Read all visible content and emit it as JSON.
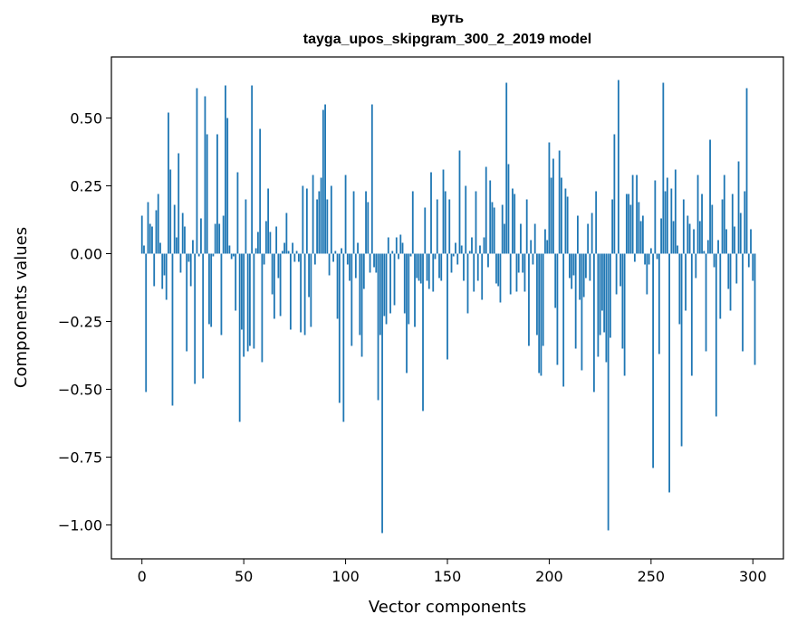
{
  "chart_data": {
    "type": "bar",
    "title": "вуть",
    "subtitle": "tayga_upos_skipgram_300_2_2019 model",
    "xlabel": "Vector components",
    "ylabel": "Components values",
    "xlim": [
      -15,
      315
    ],
    "ylim": [
      -1.125,
      0.725
    ],
    "xticks": [
      0,
      50,
      100,
      150,
      200,
      250,
      300
    ],
    "xtick_labels": [
      "0",
      "50",
      "100",
      "150",
      "200",
      "250",
      "300"
    ],
    "yticks": [
      0.5,
      0.25,
      0,
      -0.25,
      -0.5,
      -0.75,
      -1.0
    ],
    "ytick_labels": [
      "0.50",
      "0.25",
      "0.00",
      "−0.25",
      "−0.50",
      "−0.75",
      "−1.00"
    ],
    "grid": false,
    "bar_color": "#1f77b4",
    "x": "0..299",
    "values": [
      0.14,
      0.03,
      -0.51,
      0.19,
      0.11,
      0.1,
      -0.12,
      0.16,
      0.22,
      0.04,
      -0.13,
      -0.08,
      -0.17,
      0.52,
      0.31,
      -0.56,
      0.18,
      0.06,
      0.37,
      -0.07,
      0.15,
      0.1,
      -0.36,
      -0.03,
      -0.12,
      0.05,
      -0.48,
      0.61,
      -0.01,
      0.13,
      -0.46,
      0.58,
      0.44,
      -0.26,
      -0.27,
      -0.01,
      0.11,
      0.44,
      0.11,
      -0.3,
      0.14,
      0.62,
      0.5,
      0.03,
      -0.02,
      -0.01,
      -0.21,
      0.3,
      -0.62,
      -0.28,
      -0.38,
      0.2,
      -0.36,
      -0.34,
      0.62,
      -0.35,
      0.02,
      0.08,
      0.46,
      -0.4,
      -0.04,
      0.12,
      0.24,
      0.08,
      -0.15,
      -0.24,
      0.1,
      -0.09,
      -0.23,
      0.01,
      0.04,
      0.15,
      0.01,
      -0.28,
      0.04,
      -0.03,
      0.01,
      -0.03,
      -0.29,
      0.25,
      -0.3,
      0.24,
      -0.16,
      -0.27,
      0.29,
      -0.04,
      0.2,
      0.23,
      0.28,
      0.53,
      0.55,
      0.2,
      -0.08,
      0.25,
      -0.03,
      0.01,
      -0.24,
      -0.55,
      0.02,
      -0.62,
      0.29,
      -0.04,
      -0.1,
      -0.34,
      0.23,
      -0.09,
      0.04,
      -0.3,
      -0.38,
      -0.13,
      0.23,
      0.19,
      -0.07,
      0.55,
      -0.05,
      -0.07,
      -0.54,
      -0.3,
      -1.03,
      -0.23,
      -0.26,
      0.06,
      -0.22,
      0.01,
      -0.19,
      0.06,
      -0.02,
      0.07,
      0.04,
      -0.22,
      -0.44,
      -0.26,
      -0.01,
      0.23,
      -0.27,
      -0.09,
      -0.1,
      -0.11,
      -0.58,
      0.17,
      -0.1,
      -0.13,
      0.3,
      -0.14,
      -0.02,
      0.2,
      -0.09,
      -0.1,
      0.31,
      0.23,
      -0.39,
      0.2,
      -0.07,
      -0.01,
      0.04,
      -0.04,
      0.38,
      0.03,
      -0.1,
      0.25,
      -0.22,
      0.01,
      0.06,
      -0.14,
      0.23,
      -0.1,
      0.03,
      -0.17,
      0.06,
      0.32,
      -0.05,
      0.27,
      0.19,
      0.17,
      -0.11,
      -0.12,
      -0.18,
      0.18,
      0.11,
      0.63,
      0.33,
      -0.15,
      0.24,
      0.22,
      -0.14,
      -0.07,
      0.11,
      -0.07,
      -0.14,
      0.2,
      -0.34,
      0.05,
      -0.04,
      0.11,
      -0.3,
      -0.44,
      -0.45,
      -0.34,
      0.09,
      0.05,
      0.41,
      0.28,
      0.35,
      -0.2,
      -0.41,
      0.38,
      0.28,
      -0.49,
      0.24,
      0.21,
      -0.09,
      -0.13,
      -0.08,
      -0.35,
      0.14,
      -0.17,
      -0.43,
      -0.16,
      -0.09,
      0.11,
      -0.1,
      0.15,
      -0.51,
      0.23,
      -0.38,
      -0.3,
      -0.21,
      -0.29,
      -0.4,
      -1.02,
      -0.31,
      0.2,
      0.44,
      -0.15,
      0.64,
      -0.12,
      -0.35,
      -0.45,
      0.22,
      0.22,
      0.18,
      0.29,
      -0.03,
      0.29,
      0.19,
      0.12,
      0.14,
      -0.04,
      -0.15,
      -0.04,
      0.02,
      -0.79,
      0.27,
      -0.02,
      -0.37,
      0.13,
      0.63,
      0.23,
      0.28,
      -0.88,
      0.24,
      0.12,
      0.31,
      0.03,
      -0.26,
      -0.71,
      0.2,
      -0.21,
      0.14,
      0.11,
      -0.45,
      0.09,
      -0.09,
      0.29,
      0.12,
      0.22,
      0.01,
      -0.36,
      0.05,
      0.42,
      0.18,
      -0.05,
      -0.6,
      0.05,
      -0.24,
      0.2,
      0.29,
      0.09,
      -0.13,
      -0.21,
      0.22,
      0.1,
      -0.11,
      0.34,
      0.15,
      -0.36,
      0.23,
      0.61,
      -0.05,
      0.09,
      -0.1,
      -0.41
    ]
  }
}
